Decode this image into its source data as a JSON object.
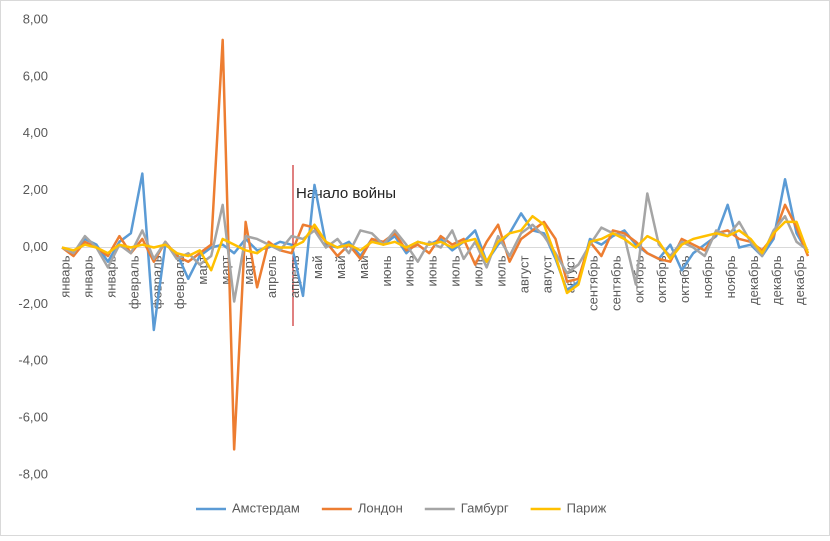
{
  "chart_data": {
    "type": "line",
    "categories": [
      "январь",
      null,
      "январь",
      null,
      "январь",
      null,
      "февраль",
      null,
      "февраль",
      null,
      "февраль",
      null,
      "март",
      null,
      "март",
      null,
      "март",
      null,
      "апрель",
      null,
      "апрель",
      null,
      "май",
      null,
      "май",
      null,
      "май",
      null,
      "июнь",
      null,
      "июнь",
      null,
      "июнь",
      null,
      "июль",
      null,
      "июль",
      null,
      "июль",
      null,
      "август",
      null,
      "август",
      null,
      "август",
      null,
      "сентябрь",
      null,
      "сентябрь",
      null,
      "октябрь",
      null,
      "октябрь",
      null,
      "октябрь",
      null,
      "ноябрь",
      null,
      "ноябрь",
      null,
      "декабрь",
      null,
      "декабрь",
      null,
      "декабрь",
      null
    ],
    "series": [
      {
        "name": "Амстердам",
        "color": "#5b9bd5",
        "values": [
          0,
          -0.2,
          0.3,
          0.1,
          -0.5,
          0.2,
          0.5,
          2.6,
          -2.9,
          0.1,
          -0.2,
          -1.1,
          -0.3,
          0,
          0.1,
          -0.2,
          0.3,
          -0.1,
          0,
          0.2,
          0.1,
          -1.7,
          2.2,
          0.1,
          0,
          0.2,
          -0.3,
          0.3,
          0.1,
          0.4,
          -0.2,
          0.2,
          0.1,
          0.3,
          -0.1,
          0.2,
          0.6,
          -0.5,
          0.1,
          0.5,
          1.2,
          0.6,
          0.5,
          -0.4,
          -1.5,
          -1.2,
          0.3,
          0.1,
          0.4,
          0.6,
          0.1,
          -0.2,
          -0.4,
          0.1,
          -0.8,
          -0.2,
          0.1,
          0.4,
          1.5,
          0,
          0.1,
          -0.3,
          0.3,
          2.4,
          0.5,
          -0.2
        ]
      },
      {
        "name": "Лондон",
        "color": "#ed7d31",
        "values": [
          0,
          -0.3,
          0.2,
          0,
          -0.3,
          0.4,
          -0.2,
          0.3,
          -0.5,
          0.2,
          -0.3,
          -0.5,
          -0.2,
          0.1,
          7.3,
          -7.1,
          0.9,
          -1.4,
          0.2,
          -0.1,
          -0.2,
          0.8,
          0.7,
          0.2,
          -0.3,
          0.1,
          -0.4,
          0.3,
          0.2,
          0.5,
          -0.1,
          0.1,
          -0.2,
          0.4,
          0.1,
          0.3,
          -0.6,
          0.2,
          0.8,
          -0.5,
          0.3,
          0.6,
          0.9,
          0.3,
          -1.2,
          -1.1,
          0.2,
          -0.3,
          0.6,
          0.5,
          0.2,
          -0.2,
          -0.4,
          -0.5,
          0.3,
          0.1,
          -0.1,
          0.5,
          0.6,
          0.3,
          0.2,
          -0.1,
          0.4,
          1.5,
          0.7,
          -0.3
        ]
      },
      {
        "name": "Гамбург",
        "color": "#a5a5a5",
        "values": [
          0,
          -0.2,
          0.4,
          0,
          -0.7,
          0.1,
          -0.2,
          0.6,
          -0.4,
          0.2,
          -0.4,
          -0.2,
          -0.6,
          -0.3,
          1.5,
          -1.9,
          0.4,
          0.3,
          0.1,
          -0.1,
          0.4,
          0.3,
          0.6,
          0,
          0.3,
          -0.2,
          0.6,
          0.5,
          0.1,
          0.6,
          0.1,
          -0.5,
          0.2,
          0,
          0.6,
          -0.4,
          0.2,
          -0.7,
          0.4,
          -0.3,
          0.5,
          0.8,
          0.4,
          -0.2,
          -0.9,
          -0.6,
          0.1,
          0.7,
          0.5,
          0.4,
          -1.3,
          1.9,
          0.1,
          -0.3,
          0.2,
          0,
          -0.3,
          0.6,
          0.4,
          0.9,
          0.2,
          -0.3,
          0.6,
          1.1,
          0.2,
          -0.1
        ]
      },
      {
        "name": "Париж",
        "color": "#ffc000",
        "values": [
          0,
          -0.1,
          0.1,
          0,
          -0.2,
          0.1,
          0,
          0.1,
          0,
          0.1,
          -0.2,
          -0.3,
          -0.1,
          -0.8,
          0.3,
          0.1,
          -0.1,
          -0.2,
          0.1,
          0,
          0,
          0.2,
          0.8,
          0.2,
          0,
          0.1,
          -0.1,
          0.2,
          0.1,
          0.2,
          0,
          0.2,
          0.1,
          0.2,
          0,
          0.2,
          0.3,
          -0.5,
          0.2,
          0.5,
          0.6,
          1.1,
          0.8,
          -0.3,
          -1.6,
          -1.3,
          0.2,
          0.3,
          0.5,
          0.3,
          0,
          0.4,
          0.2,
          -0.4,
          0.1,
          0.3,
          0.4,
          0.5,
          0.4,
          0.6,
          0.3,
          -0.2,
          0.5,
          0.9,
          0.9,
          -0.2
        ]
      }
    ],
    "ylim": [
      -8,
      8
    ],
    "yticks": [
      {
        "value": -8,
        "label": "-8,00"
      },
      {
        "value": -6,
        "label": "-6,00"
      },
      {
        "value": -4,
        "label": "-4,00"
      },
      {
        "value": -2,
        "label": "-2,00"
      },
      {
        "value": 0,
        "label": "0,00"
      },
      {
        "value": 2,
        "label": "2,00"
      },
      {
        "value": 4,
        "label": "4,00"
      },
      {
        "value": 6,
        "label": "6,00"
      },
      {
        "value": 8,
        "label": "8,00"
      }
    ],
    "grid": false,
    "legend": "bottom",
    "annotations": [
      {
        "text": "Начало войны"
      }
    ]
  }
}
